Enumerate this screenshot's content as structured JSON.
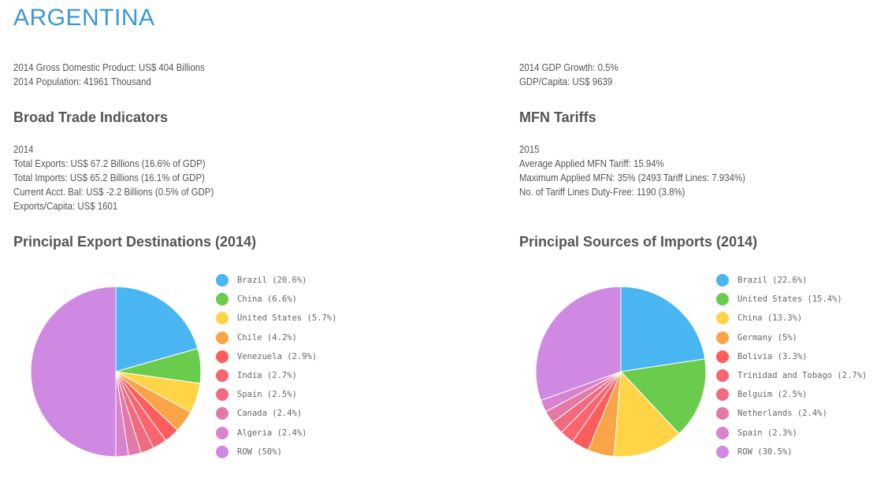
{
  "title": "ARGENTINA",
  "overview_left": [
    "2014 Gross Domestic Product: US$ 404 Billions",
    "2014 Population: 41961 Thousand"
  ],
  "overview_right": [
    "2014 GDP Growth: 0.5%",
    "GDP/Capita: US$ 9639"
  ],
  "broad_trade": {
    "heading": "Broad Trade Indicators",
    "lines": [
      "2014",
      "Total Exports: US$ 67.2 Billions  (16.6% of GDP)",
      "Total Imports: US$ 65.2 Billions  (16.1% of GDP)",
      "Current Acct. Bal: US$ -2.2 Billions  (0.5% of GDP)",
      "Exports/Capita: US$ 1601"
    ]
  },
  "mfn": {
    "heading": "MFN Tariffs",
    "lines": [
      "2015",
      "Average Applied MFN Tariff: 15.94%",
      "Maximum Applied MFN: 35% (2493 Tariff Lines: 7.934%)",
      "No. of Tariff Lines Duty-Free: 1190 (3.8%)"
    ]
  },
  "chart_data": [
    {
      "type": "pie",
      "title": "Principal Export Destinations (2014)",
      "legend_placement": "right",
      "labels": [
        "Brazil (20.6%)",
        "China (6.6%)",
        "United States (5.7%)",
        "Chile (4.2%)",
        "Venezuela (2.9%)",
        "India (2.7%)",
        "Spain (2.5%)",
        "Canada (2.4%)",
        "Algeria (2.4%)",
        "ROW (50%)"
      ],
      "values": [
        20.6,
        6.6,
        5.7,
        4.2,
        2.9,
        2.7,
        2.5,
        2.4,
        2.4,
        50
      ],
      "colors": [
        "#4ab6f1",
        "#6acc4c",
        "#ffd446",
        "#f9a446",
        "#ff5c5c",
        "#fc6470",
        "#f26a80",
        "#e479a6",
        "#d883cf",
        "#cf89e3"
      ]
    },
    {
      "type": "pie",
      "title": "Principal Sources of Imports (2014)",
      "legend_placement": "right",
      "labels": [
        "Brazil (22.6%)",
        "United States (15.4%)",
        "China (13.3%)",
        "Germany (5%)",
        "Bolivia (3.3%)",
        "Trinidad and Tobago (2.7%)",
        "Belguim (2.5%)",
        "Netherlands (2.4%)",
        "Spain (2.3%)",
        "ROW (30.5%)"
      ],
      "values": [
        22.6,
        15.4,
        13.3,
        5,
        3.3,
        2.7,
        2.5,
        2.4,
        2.3,
        30.5
      ],
      "colors": [
        "#4ab6f1",
        "#6acc4c",
        "#ffd446",
        "#f9a446",
        "#ff5c5c",
        "#fc6470",
        "#f26a80",
        "#e479a6",
        "#d883cf",
        "#cf89e3"
      ]
    }
  ]
}
